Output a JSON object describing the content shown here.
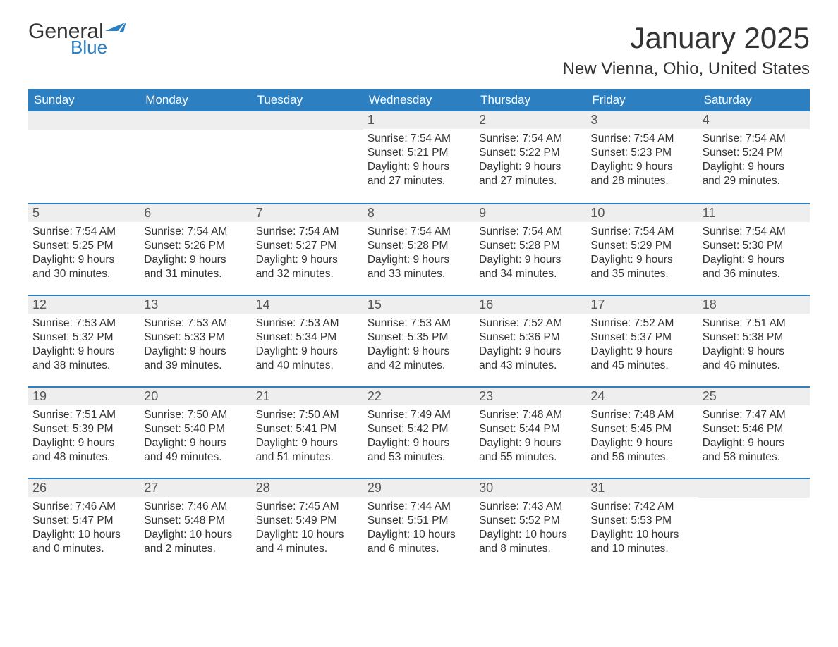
{
  "logo": {
    "text1": "General",
    "text2": "Blue"
  },
  "title": "January 2025",
  "subtitle": "New Vienna, Ohio, United States",
  "colors": {
    "header_bg": "#2c7fc1",
    "header_text": "#ffffff",
    "daynum_bg": "#eeeeee",
    "daynum_text": "#555555",
    "body_text": "#333333",
    "week_border": "#2c7fc1",
    "page_bg": "#ffffff"
  },
  "day_headers": [
    "Sunday",
    "Monday",
    "Tuesday",
    "Wednesday",
    "Thursday",
    "Friday",
    "Saturday"
  ],
  "weeks": [
    [
      null,
      null,
      null,
      {
        "n": "1",
        "sunrise": "7:54 AM",
        "sunset": "5:21 PM",
        "daylight": "9 hours and 27 minutes."
      },
      {
        "n": "2",
        "sunrise": "7:54 AM",
        "sunset": "5:22 PM",
        "daylight": "9 hours and 27 minutes."
      },
      {
        "n": "3",
        "sunrise": "7:54 AM",
        "sunset": "5:23 PM",
        "daylight": "9 hours and 28 minutes."
      },
      {
        "n": "4",
        "sunrise": "7:54 AM",
        "sunset": "5:24 PM",
        "daylight": "9 hours and 29 minutes."
      }
    ],
    [
      {
        "n": "5",
        "sunrise": "7:54 AM",
        "sunset": "5:25 PM",
        "daylight": "9 hours and 30 minutes."
      },
      {
        "n": "6",
        "sunrise": "7:54 AM",
        "sunset": "5:26 PM",
        "daylight": "9 hours and 31 minutes."
      },
      {
        "n": "7",
        "sunrise": "7:54 AM",
        "sunset": "5:27 PM",
        "daylight": "9 hours and 32 minutes."
      },
      {
        "n": "8",
        "sunrise": "7:54 AM",
        "sunset": "5:28 PM",
        "daylight": "9 hours and 33 minutes."
      },
      {
        "n": "9",
        "sunrise": "7:54 AM",
        "sunset": "5:28 PM",
        "daylight": "9 hours and 34 minutes."
      },
      {
        "n": "10",
        "sunrise": "7:54 AM",
        "sunset": "5:29 PM",
        "daylight": "9 hours and 35 minutes."
      },
      {
        "n": "11",
        "sunrise": "7:54 AM",
        "sunset": "5:30 PM",
        "daylight": "9 hours and 36 minutes."
      }
    ],
    [
      {
        "n": "12",
        "sunrise": "7:53 AM",
        "sunset": "5:32 PM",
        "daylight": "9 hours and 38 minutes."
      },
      {
        "n": "13",
        "sunrise": "7:53 AM",
        "sunset": "5:33 PM",
        "daylight": "9 hours and 39 minutes."
      },
      {
        "n": "14",
        "sunrise": "7:53 AM",
        "sunset": "5:34 PM",
        "daylight": "9 hours and 40 minutes."
      },
      {
        "n": "15",
        "sunrise": "7:53 AM",
        "sunset": "5:35 PM",
        "daylight": "9 hours and 42 minutes."
      },
      {
        "n": "16",
        "sunrise": "7:52 AM",
        "sunset": "5:36 PM",
        "daylight": "9 hours and 43 minutes."
      },
      {
        "n": "17",
        "sunrise": "7:52 AM",
        "sunset": "5:37 PM",
        "daylight": "9 hours and 45 minutes."
      },
      {
        "n": "18",
        "sunrise": "7:51 AM",
        "sunset": "5:38 PM",
        "daylight": "9 hours and 46 minutes."
      }
    ],
    [
      {
        "n": "19",
        "sunrise": "7:51 AM",
        "sunset": "5:39 PM",
        "daylight": "9 hours and 48 minutes."
      },
      {
        "n": "20",
        "sunrise": "7:50 AM",
        "sunset": "5:40 PM",
        "daylight": "9 hours and 49 minutes."
      },
      {
        "n": "21",
        "sunrise": "7:50 AM",
        "sunset": "5:41 PM",
        "daylight": "9 hours and 51 minutes."
      },
      {
        "n": "22",
        "sunrise": "7:49 AM",
        "sunset": "5:42 PM",
        "daylight": "9 hours and 53 minutes."
      },
      {
        "n": "23",
        "sunrise": "7:48 AM",
        "sunset": "5:44 PM",
        "daylight": "9 hours and 55 minutes."
      },
      {
        "n": "24",
        "sunrise": "7:48 AM",
        "sunset": "5:45 PM",
        "daylight": "9 hours and 56 minutes."
      },
      {
        "n": "25",
        "sunrise": "7:47 AM",
        "sunset": "5:46 PM",
        "daylight": "9 hours and 58 minutes."
      }
    ],
    [
      {
        "n": "26",
        "sunrise": "7:46 AM",
        "sunset": "5:47 PM",
        "daylight": "10 hours and 0 minutes."
      },
      {
        "n": "27",
        "sunrise": "7:46 AM",
        "sunset": "5:48 PM",
        "daylight": "10 hours and 2 minutes."
      },
      {
        "n": "28",
        "sunrise": "7:45 AM",
        "sunset": "5:49 PM",
        "daylight": "10 hours and 4 minutes."
      },
      {
        "n": "29",
        "sunrise": "7:44 AM",
        "sunset": "5:51 PM",
        "daylight": "10 hours and 6 minutes."
      },
      {
        "n": "30",
        "sunrise": "7:43 AM",
        "sunset": "5:52 PM",
        "daylight": "10 hours and 8 minutes."
      },
      {
        "n": "31",
        "sunrise": "7:42 AM",
        "sunset": "5:53 PM",
        "daylight": "10 hours and 10 minutes."
      },
      null
    ]
  ],
  "labels": {
    "sunrise": "Sunrise: ",
    "sunset": "Sunset: ",
    "daylight": "Daylight: "
  }
}
